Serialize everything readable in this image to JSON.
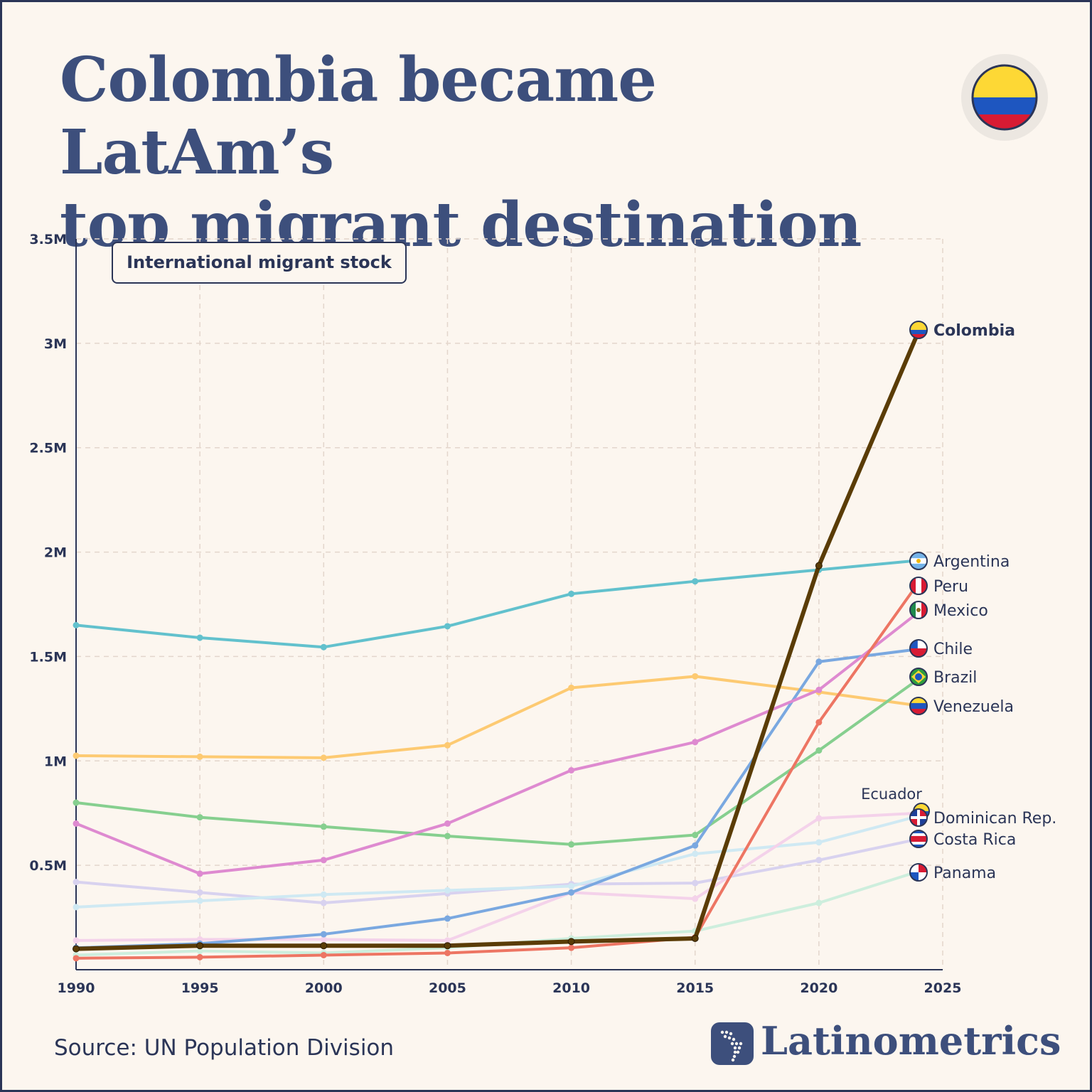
{
  "title_line1": "Colombia became LatAm’s",
  "title_line2": "top migrant destination",
  "legend_label": "International migrant stock",
  "source": "Source: UN Population Division",
  "brand": "Latinometrics",
  "colors": {
    "background": "#fcf6ef",
    "title": "#3d4f7c",
    "text": "#2b3557",
    "grid": "#e3d6cc",
    "flag_yellow": "#fdd835",
    "flag_blue": "#1e56c0",
    "flag_red": "#d81b33"
  },
  "chart_data": {
    "type": "line",
    "title": "Colombia became LatAm’s top migrant destination",
    "subtitle": "International migrant stock",
    "xlabel": "",
    "ylabel": "",
    "xlim": [
      1990,
      2025
    ],
    "ylim": [
      0,
      3500000
    ],
    "x_ticks": [
      1990,
      1995,
      2000,
      2005,
      2010,
      2015,
      2020,
      2025
    ],
    "y_ticks": [
      {
        "value": 500000,
        "label": "0.5M"
      },
      {
        "value": 1000000,
        "label": "1M"
      },
      {
        "value": 1500000,
        "label": "1.5M"
      },
      {
        "value": 2000000,
        "label": "2M"
      },
      {
        "value": 2500000,
        "label": "2.5M"
      },
      {
        "value": 3000000,
        "label": "3M"
      },
      {
        "value": 3500000,
        "label": "3.5M"
      }
    ],
    "x": [
      1990,
      1995,
      2000,
      2005,
      2010,
      2015,
      2020,
      2024
    ],
    "grid": true,
    "legend": "end-of-line labels",
    "series": [
      {
        "name": "Panama",
        "color": "#cdeedd",
        "width": 4,
        "label_offset": 0,
        "values": [
          70000,
          90000,
          80000,
          105000,
          150000,
          185000,
          320000,
          470000
        ]
      },
      {
        "name": "Costa Rica",
        "color": "#d8d2ef",
        "width": 4,
        "label_offset": 0,
        "values": [
          420000,
          370000,
          320000,
          365000,
          410000,
          415000,
          525000,
          625000
        ]
      },
      {
        "name": "Dominican Rep.",
        "color": "#cfe9f3",
        "width": 4,
        "label_offset": 0,
        "values": [
          300000,
          330000,
          360000,
          380000,
          400000,
          555000,
          610000,
          735000
        ]
      },
      {
        "name": "Ecuador",
        "color": "#f4d2ea",
        "width": 4,
        "label_offset": 0,
        "values": [
          140000,
          145000,
          145000,
          140000,
          370000,
          340000,
          725000,
          750000
        ]
      },
      {
        "name": "Venezuela",
        "color": "#fdca72",
        "width": 4,
        "label_offset": 0,
        "values": [
          1025000,
          1020000,
          1015000,
          1075000,
          1350000,
          1405000,
          1330000,
          1265000
        ]
      },
      {
        "name": "Brazil",
        "color": "#86cf8f",
        "width": 4,
        "label_offset": 0,
        "values": [
          800000,
          730000,
          685000,
          640000,
          600000,
          645000,
          1050000,
          1390000
        ]
      },
      {
        "name": "Chile",
        "color": "#7aa8e0",
        "width": 4,
        "label_offset": 0,
        "values": [
          105000,
          125000,
          170000,
          245000,
          370000,
          595000,
          1475000,
          1535000
        ]
      },
      {
        "name": "Mexico",
        "color": "#de8ad0",
        "width": 4,
        "label_offset": 0,
        "values": [
          700000,
          460000,
          525000,
          700000,
          955000,
          1090000,
          1340000,
          1710000
        ]
      },
      {
        "name": "Peru",
        "color": "#ed7563",
        "width": 4,
        "label_offset": 0,
        "values": [
          55000,
          60000,
          70000,
          80000,
          105000,
          155000,
          1185000,
          1850000
        ]
      },
      {
        "name": "Argentina",
        "color": "#62c1cd",
        "width": 4,
        "label_offset": 0,
        "values": [
          1650000,
          1590000,
          1545000,
          1645000,
          1800000,
          1860000,
          1915000,
          1960000
        ]
      },
      {
        "name": "Colombia",
        "color": "#5a3c06",
        "width": 6,
        "label_offset": 0,
        "values": [
          100000,
          115000,
          115000,
          115000,
          135000,
          150000,
          1935000,
          3050000
        ]
      }
    ]
  }
}
